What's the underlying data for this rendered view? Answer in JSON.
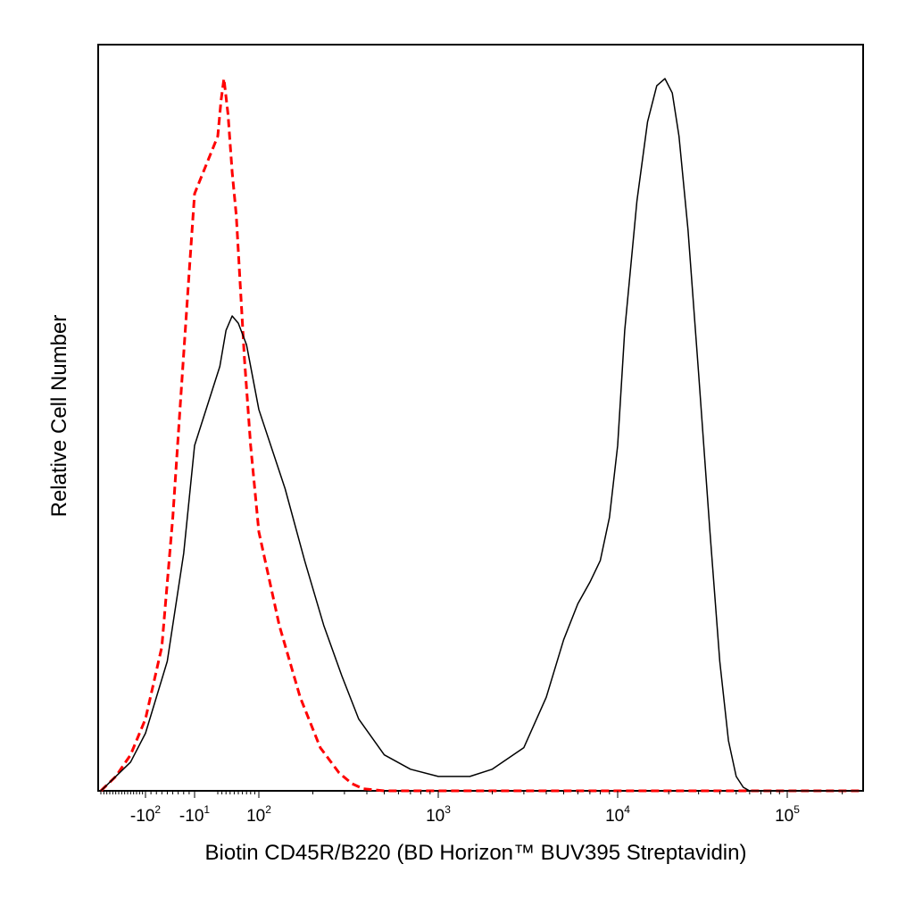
{
  "chart_data": {
    "type": "area",
    "xlabel": "Biotin CD45R/B220 (BD Horizon™ BUV395 Streptavidin)",
    "ylabel": "Relative Cell Number",
    "x_scale": "biexponential",
    "x_ticks": [
      {
        "value": -100,
        "base": "-10",
        "exp": "2"
      },
      {
        "value": -10,
        "base": "-10",
        "exp": "1"
      },
      {
        "value": 100,
        "base": "10",
        "exp": "2"
      },
      {
        "value": 1000,
        "base": "10",
        "exp": "3"
      },
      {
        "value": 10000,
        "base": "10",
        "exp": "4"
      },
      {
        "value": 100000,
        "base": "10",
        "exp": "5"
      }
    ],
    "xlim": [
      -250,
      260000
    ],
    "ylim": [
      0,
      100
    ],
    "grid": false,
    "series": [
      {
        "style": "dashed",
        "color": "#ff0000",
        "x": [
          -250,
          -200,
          -150,
          -100,
          -70,
          -50,
          -35,
          -20,
          -10,
          0,
          8,
          15,
          25,
          35,
          45,
          55,
          65,
          80,
          100,
          130,
          170,
          220,
          280,
          330,
          380,
          500,
          1000,
          10000,
          100000,
          260000
        ],
        "y": [
          0,
          2,
          5,
          10,
          20,
          38,
          55,
          72,
          83,
          91,
          96,
          99,
          94,
          86,
          80,
          70,
          60,
          48,
          36,
          23,
          13,
          6,
          2.5,
          1,
          0.3,
          0,
          0,
          0,
          0,
          0
        ]
      },
      {
        "style": "solid",
        "color": "#000000",
        "x": [
          -250,
          -200,
          -150,
          -100,
          -60,
          -30,
          -10,
          5,
          20,
          35,
          50,
          70,
          100,
          140,
          180,
          230,
          290,
          360,
          500,
          700,
          1000,
          1500,
          2000,
          3000,
          4000,
          5000,
          6000,
          7000,
          8000,
          9000,
          10000,
          11000,
          13000,
          15000,
          17000,
          19000,
          21000,
          23000,
          26000,
          30000,
          35000,
          40000,
          45000,
          50000,
          55000,
          60000,
          100000,
          260000
        ],
        "y": [
          0,
          2,
          4,
          8,
          18,
          33,
          48,
          59,
          64,
          66,
          65,
          62,
          53,
          42,
          32,
          23,
          16,
          10,
          5,
          3,
          2,
          2,
          3,
          6,
          13,
          21,
          26,
          29,
          32,
          38,
          48,
          64,
          82,
          93,
          98,
          99,
          97,
          91,
          78,
          58,
          36,
          18,
          7,
          2,
          0.5,
          0,
          0,
          0
        ]
      }
    ]
  }
}
